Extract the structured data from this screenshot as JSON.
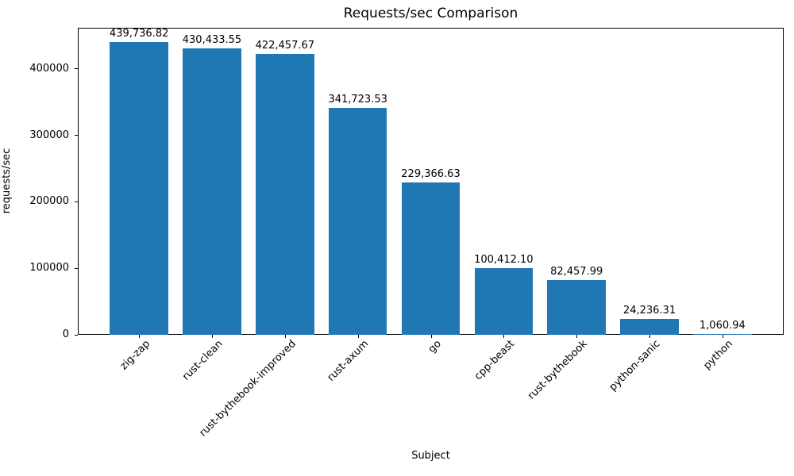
{
  "chart_data": {
    "type": "bar",
    "title": "Requests/sec Comparison",
    "xlabel": "Subject",
    "ylabel": "requests/sec",
    "categories": [
      "zig-zap",
      "rust-clean",
      "rust-bythebook-improved",
      "rust-axum",
      "go",
      "cpp-beast",
      "rust-bythebook",
      "python-sanic",
      "python"
    ],
    "values": [
      439736.82,
      430433.55,
      422457.67,
      341723.53,
      229366.63,
      100412.1,
      82457.99,
      24236.31,
      1060.94
    ],
    "value_labels": [
      "439,736.82",
      "430,433.55",
      "422,457.67",
      "341,723.53",
      "229,366.63",
      "100,412.10",
      "82,457.99",
      "24,236.31",
      "1,060.94"
    ],
    "yticks": [
      {
        "value": 0,
        "label": "0"
      },
      {
        "value": 100000,
        "label": "100000"
      },
      {
        "value": 200000,
        "label": "200000"
      },
      {
        "value": 300000,
        "label": "300000"
      },
      {
        "value": 400000,
        "label": "400000"
      }
    ],
    "ylim": [
      0,
      461723.66
    ],
    "xtick_rotation_deg": 45,
    "bar_color": "#1f77b4",
    "text_color": "#000000",
    "background_color": "#ffffff",
    "grid": false,
    "legend": false
  }
}
